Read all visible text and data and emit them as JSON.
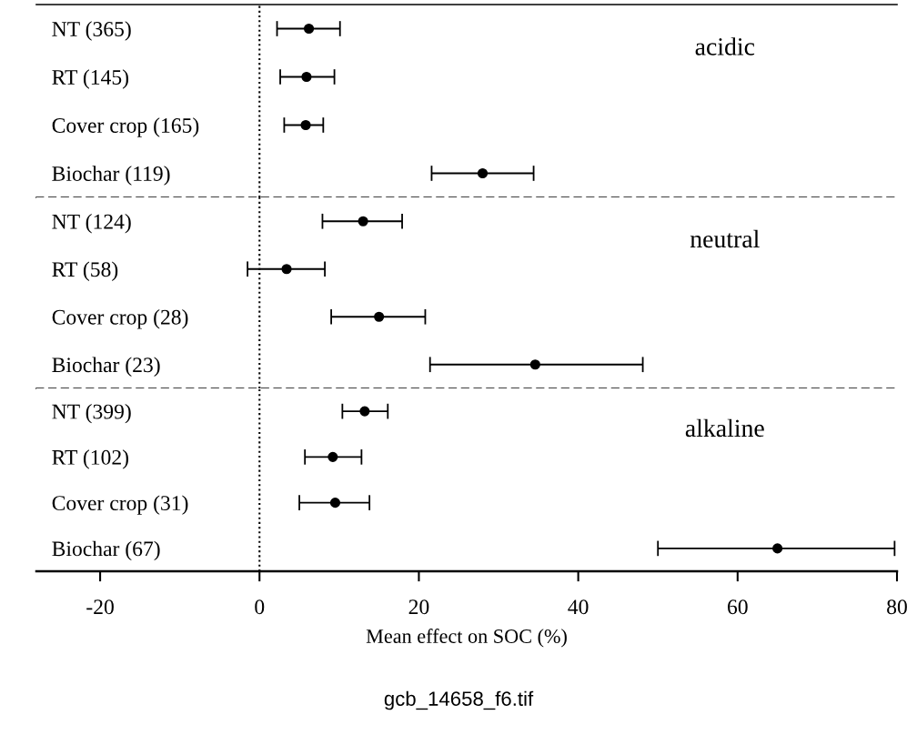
{
  "chart_data": [
    {
      "type": "scatter",
      "orientation": "horizontal",
      "tick_labels": "y",
      "categories": [
        "NT (365)",
        "RT (145)",
        "Cover crop (165)",
        "Biochar (119)"
      ],
      "values": [
        6.2,
        5.9,
        5.8,
        28.0
      ],
      "errors": [
        [
          2.2,
          10.1
        ],
        [
          2.6,
          9.4
        ],
        [
          3.1,
          8.0
        ],
        [
          21.6,
          34.4
        ]
      ],
      "color": "#000000",
      "marker": "circle",
      "xlim": [
        -28,
        80
      ],
      "ref_lines": [
        {
          "axis": "x",
          "value": 0,
          "line_style": "dotted",
          "color": "#000000"
        }
      ],
      "annotations": [
        "acidic"
      ]
    },
    {
      "type": "scatter",
      "orientation": "horizontal",
      "tick_labels": "y",
      "categories": [
        "NT (124)",
        "RT (58)",
        "Cover crop (28)",
        "Biochar (23)"
      ],
      "values": [
        13.0,
        3.4,
        15.0,
        34.6
      ],
      "errors": [
        [
          7.9,
          17.9
        ],
        [
          -1.5,
          8.2
        ],
        [
          9.0,
          20.8
        ],
        [
          21.4,
          48.1
        ]
      ],
      "color": "#000000",
      "marker": "circle",
      "xlim": [
        -28,
        80
      ],
      "ref_lines": [
        {
          "axis": "x",
          "value": 0,
          "line_style": "dotted",
          "color": "#000000"
        }
      ],
      "annotations": [
        "neutral"
      ]
    },
    {
      "type": "scatter",
      "orientation": "horizontal",
      "xlabel": "Mean effect on SOC (%)",
      "categories": [
        "NT (399)",
        "RT (102)",
        "Cover crop (31)",
        "Biochar (67)"
      ],
      "values": [
        13.2,
        9.2,
        9.5,
        65.0
      ],
      "errors": [
        [
          10.4,
          16.1
        ],
        [
          5.7,
          12.8
        ],
        [
          5.0,
          13.8
        ],
        [
          50.0,
          79.7
        ]
      ],
      "color": "#000000",
      "marker": "circle",
      "xlim": [
        -28,
        80
      ],
      "xticks": [
        -20,
        0,
        20,
        40,
        60,
        80
      ],
      "ref_lines": [
        {
          "axis": "x",
          "value": 0,
          "line_style": "dotted",
          "color": "#000000"
        }
      ],
      "annotations": [
        "alkaline",
        "gcb_14658_f6.tif"
      ]
    }
  ]
}
